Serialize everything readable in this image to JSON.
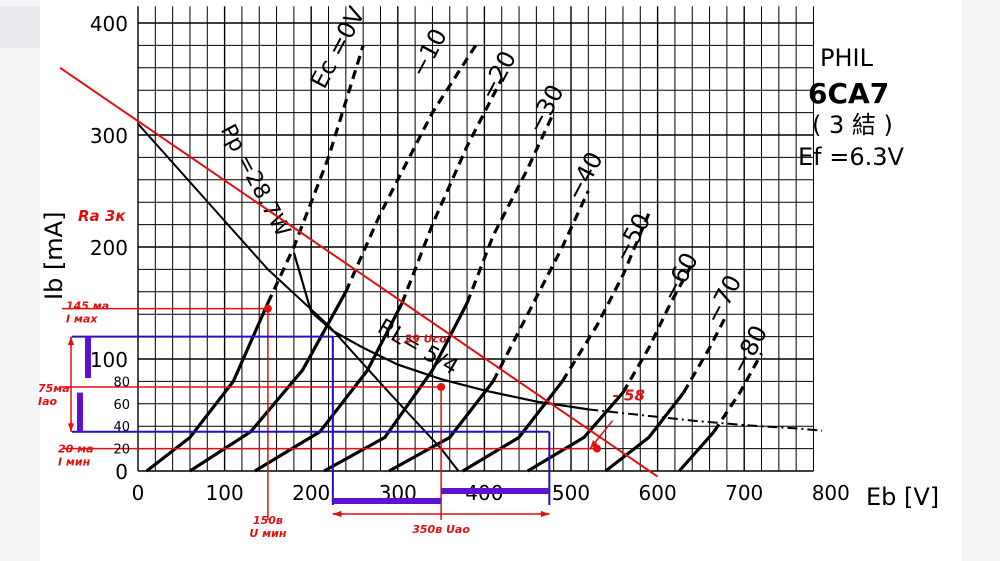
{
  "chart_data": {
    "type": "line",
    "title": "PHIL 6CA7 (3結) Ef=6.3V",
    "header": {
      "brand": "PHIL",
      "tube": "6CA7",
      "connection": "( 3 結 )",
      "filament": "Ef =6.3V"
    },
    "xlabel": "Eb [V]",
    "ylabel": "Ib [mA]",
    "xlim": [
      0,
      800
    ],
    "ylim": [
      0,
      400
    ],
    "x_ticks": [
      "0",
      "100",
      "200",
      "300",
      "400",
      "500",
      "600",
      "700",
      "800"
    ],
    "y_ticks": [
      "0",
      "100",
      "200",
      "300",
      "400"
    ],
    "series": [
      {
        "name": "Ec=0V",
        "label": "Ec =0V",
        "points": [
          [
            10,
            0
          ],
          [
            60,
            30
          ],
          [
            110,
            80
          ],
          [
            150,
            150
          ],
          [
            180,
            200
          ],
          [
            220,
            280
          ],
          [
            260,
            380
          ]
        ],
        "label_at": [
          215,
          340
        ]
      },
      {
        "name": "-10",
        "label": "−10",
        "points": [
          [
            60,
            0
          ],
          [
            130,
            35
          ],
          [
            190,
            90
          ],
          [
            240,
            160
          ],
          [
            280,
            230
          ],
          [
            340,
            320
          ],
          [
            390,
            380
          ]
        ],
        "label_at": [
          330,
          350
        ]
      },
      {
        "name": "-20",
        "label": "−20",
        "points": [
          [
            135,
            0
          ],
          [
            210,
            35
          ],
          [
            265,
            90
          ],
          [
            305,
            150
          ],
          [
            340,
            220
          ],
          [
            380,
            290
          ],
          [
            420,
            350
          ]
        ],
        "label_at": [
          410,
          330
        ]
      },
      {
        "name": "-30",
        "label": "−30",
        "points": [
          [
            215,
            0
          ],
          [
            285,
            30
          ],
          [
            340,
            90
          ],
          [
            380,
            150
          ],
          [
            410,
            210
          ],
          [
            450,
            270
          ],
          [
            480,
            320
          ]
        ],
        "label_at": [
          465,
          300
        ]
      },
      {
        "name": "-40",
        "label": "−40",
        "points": [
          [
            290,
            0
          ],
          [
            360,
            30
          ],
          [
            410,
            80
          ],
          [
            450,
            140
          ],
          [
            490,
            200
          ],
          [
            520,
            250
          ]
        ],
        "label_at": [
          510,
          240
        ]
      },
      {
        "name": "-50",
        "label": "−50",
        "points": [
          [
            375,
            0
          ],
          [
            440,
            30
          ],
          [
            490,
            80
          ],
          [
            530,
            130
          ],
          [
            560,
            175
          ],
          [
            590,
            230
          ]
        ],
        "label_at": [
          565,
          185
        ]
      },
      {
        "name": "-60",
        "label": "−60",
        "points": [
          [
            450,
            0
          ],
          [
            515,
            30
          ],
          [
            560,
            70
          ],
          [
            590,
            110
          ],
          [
            615,
            150
          ],
          [
            640,
            185
          ]
        ],
        "label_at": [
          620,
          150
        ]
      },
      {
        "name": "-70",
        "label": "−70",
        "points": [
          [
            540,
            0
          ],
          [
            590,
            30
          ],
          [
            630,
            70
          ],
          [
            660,
            110
          ],
          [
            680,
            140
          ]
        ],
        "label_at": [
          670,
          130
        ]
      },
      {
        "name": "-80",
        "label": "−80",
        "points": [
          [
            625,
            0
          ],
          [
            665,
            35
          ],
          [
            695,
            70
          ],
          [
            720,
            105
          ]
        ],
        "label_at": [
          700,
          85
        ]
      }
    ],
    "plate_dissipation_curve": {
      "label": "Pp =28.7W",
      "points": [
        [
          180,
          195
        ],
        [
          200,
          142
        ],
        [
          225,
          125
        ],
        [
          260,
          110
        ],
        [
          300,
          95
        ],
        [
          350,
          82
        ],
        [
          400,
          72
        ],
        [
          460,
          62
        ],
        [
          520,
          55
        ],
        [
          580,
          50
        ],
        [
          640,
          45
        ],
        [
          700,
          41
        ],
        [
          760,
          38
        ],
        [
          790,
          36
        ]
      ]
    },
    "load_line_rl": {
      "label": "RL= 5/4",
      "points": [
        [
          0,
          310
        ],
        [
          150,
          180
        ],
        [
          220,
          130
        ],
        [
          290,
          70
        ],
        [
          350,
          20
        ],
        [
          370,
          0
        ]
      ]
    },
    "annotations": {
      "ra": "Ra 3к",
      "i_max": "145 ма\nI мах",
      "i_a0": "75ма\nIао",
      "i_min": "20 ма\nI мин",
      "u_min": "150в\nU мин",
      "u_a0": "350в Uао",
      "u_c0": "- 29 Uco",
      "grid_min": "- 58",
      "marker_80": "80",
      "marker_60": "60",
      "marker_40": "40",
      "marker_20": "20"
    },
    "operating_line": {
      "points": [
        [
          -90,
          360
        ],
        [
          600,
          -5
        ]
      ],
      "label": "Ra 3к"
    },
    "quiescent_point": {
      "x": 350,
      "y": 75
    },
    "i_max_point": {
      "x": 150,
      "y": 145
    },
    "i_min_point": {
      "x": 530,
      "y": 20
    },
    "swing_box": {
      "x0": 225,
      "x1": 475,
      "y_high": 120,
      "y_low": 35
    }
  },
  "colors": {
    "grid": "#000000",
    "annotation_red": "#e01010",
    "annotation_blue": "#2010c0",
    "purple": "#6010d0"
  }
}
